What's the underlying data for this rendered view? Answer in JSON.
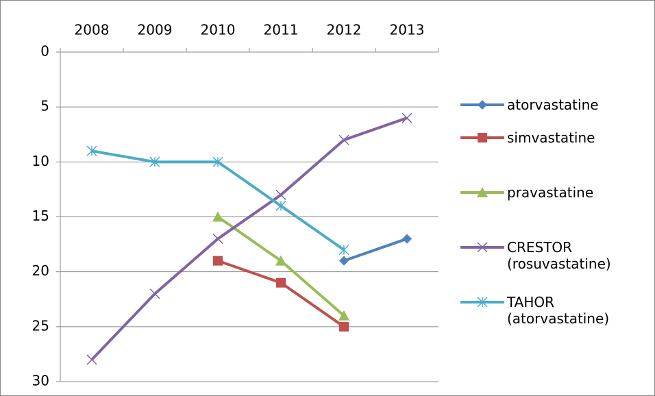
{
  "chart_data": {
    "type": "line",
    "categories": [
      "2008",
      "2009",
      "2010",
      "2011",
      "2012",
      "2013"
    ],
    "series": [
      {
        "name": "atorvastatine",
        "color": "#4f81bd",
        "marker": "diamond",
        "values": [
          null,
          null,
          null,
          null,
          19,
          17
        ]
      },
      {
        "name": "simvastatine",
        "color": "#c0504d",
        "marker": "square",
        "values": [
          null,
          null,
          19,
          21,
          25,
          null
        ]
      },
      {
        "name": "pravastatine",
        "color": "#9bbb59",
        "marker": "triangle",
        "values": [
          null,
          null,
          15,
          19,
          24,
          null
        ]
      },
      {
        "name": "CRESTOR (rosuvastatine)",
        "color": "#8064a2",
        "marker": "x",
        "values": [
          28,
          22,
          17,
          13,
          8,
          6
        ]
      },
      {
        "name": "TAHOR (atorvastatine)",
        "color": "#4bacc6",
        "marker": "star",
        "values": [
          9,
          10,
          10,
          14,
          18,
          null
        ]
      }
    ],
    "ylim": [
      0,
      30
    ],
    "yticks": [
      0,
      5,
      10,
      15,
      20,
      25,
      30
    ],
    "y_reversed": true,
    "grid": true,
    "legend": "right"
  }
}
